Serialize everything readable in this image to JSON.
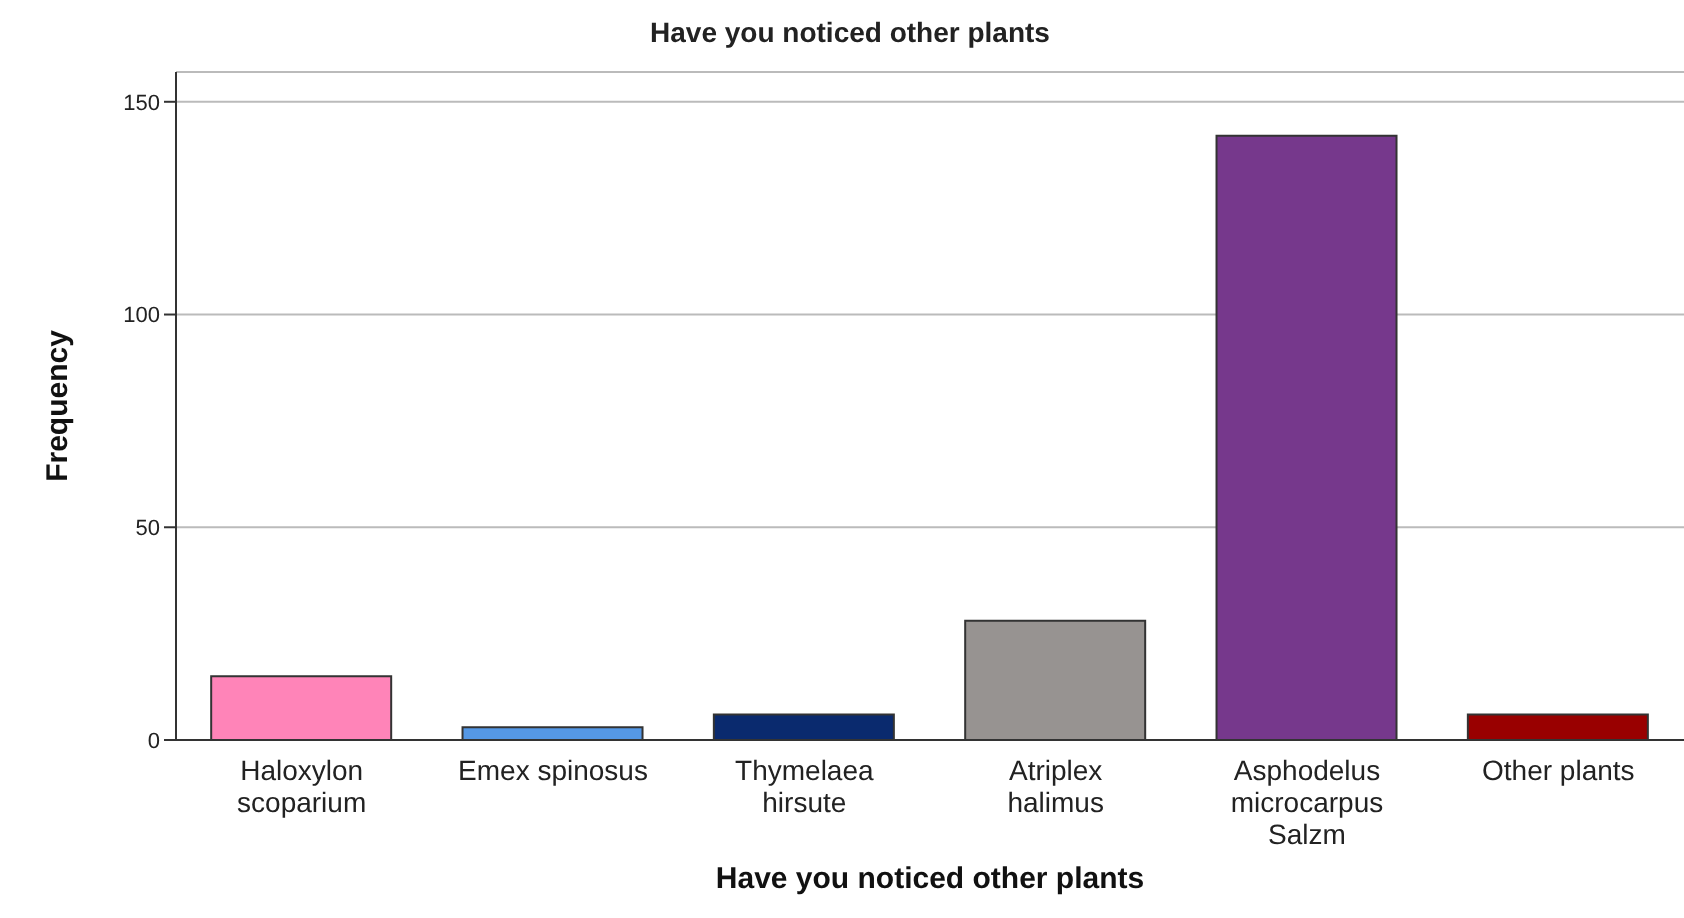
{
  "chart_data": {
    "type": "bar",
    "title": "Have you noticed other plants",
    "xlabel": "Have you noticed other plants",
    "ylabel": "Frequency",
    "categories": [
      "Haloxylon scoparium",
      "Emex spinosus",
      "Thymelaea hirsute",
      "Atriplex halimus",
      "Asphodelus microcarpus Salzm",
      "Other plants"
    ],
    "values": [
      15,
      3,
      6,
      28,
      142,
      6
    ],
    "colors": [
      "#ff84b8",
      "#5598e6",
      "#0a2a6e",
      "#979391",
      "#76388c",
      "#990000"
    ],
    "ylim": [
      0,
      157
    ],
    "yticks": [
      0,
      50,
      100,
      150
    ],
    "grid": "y"
  }
}
